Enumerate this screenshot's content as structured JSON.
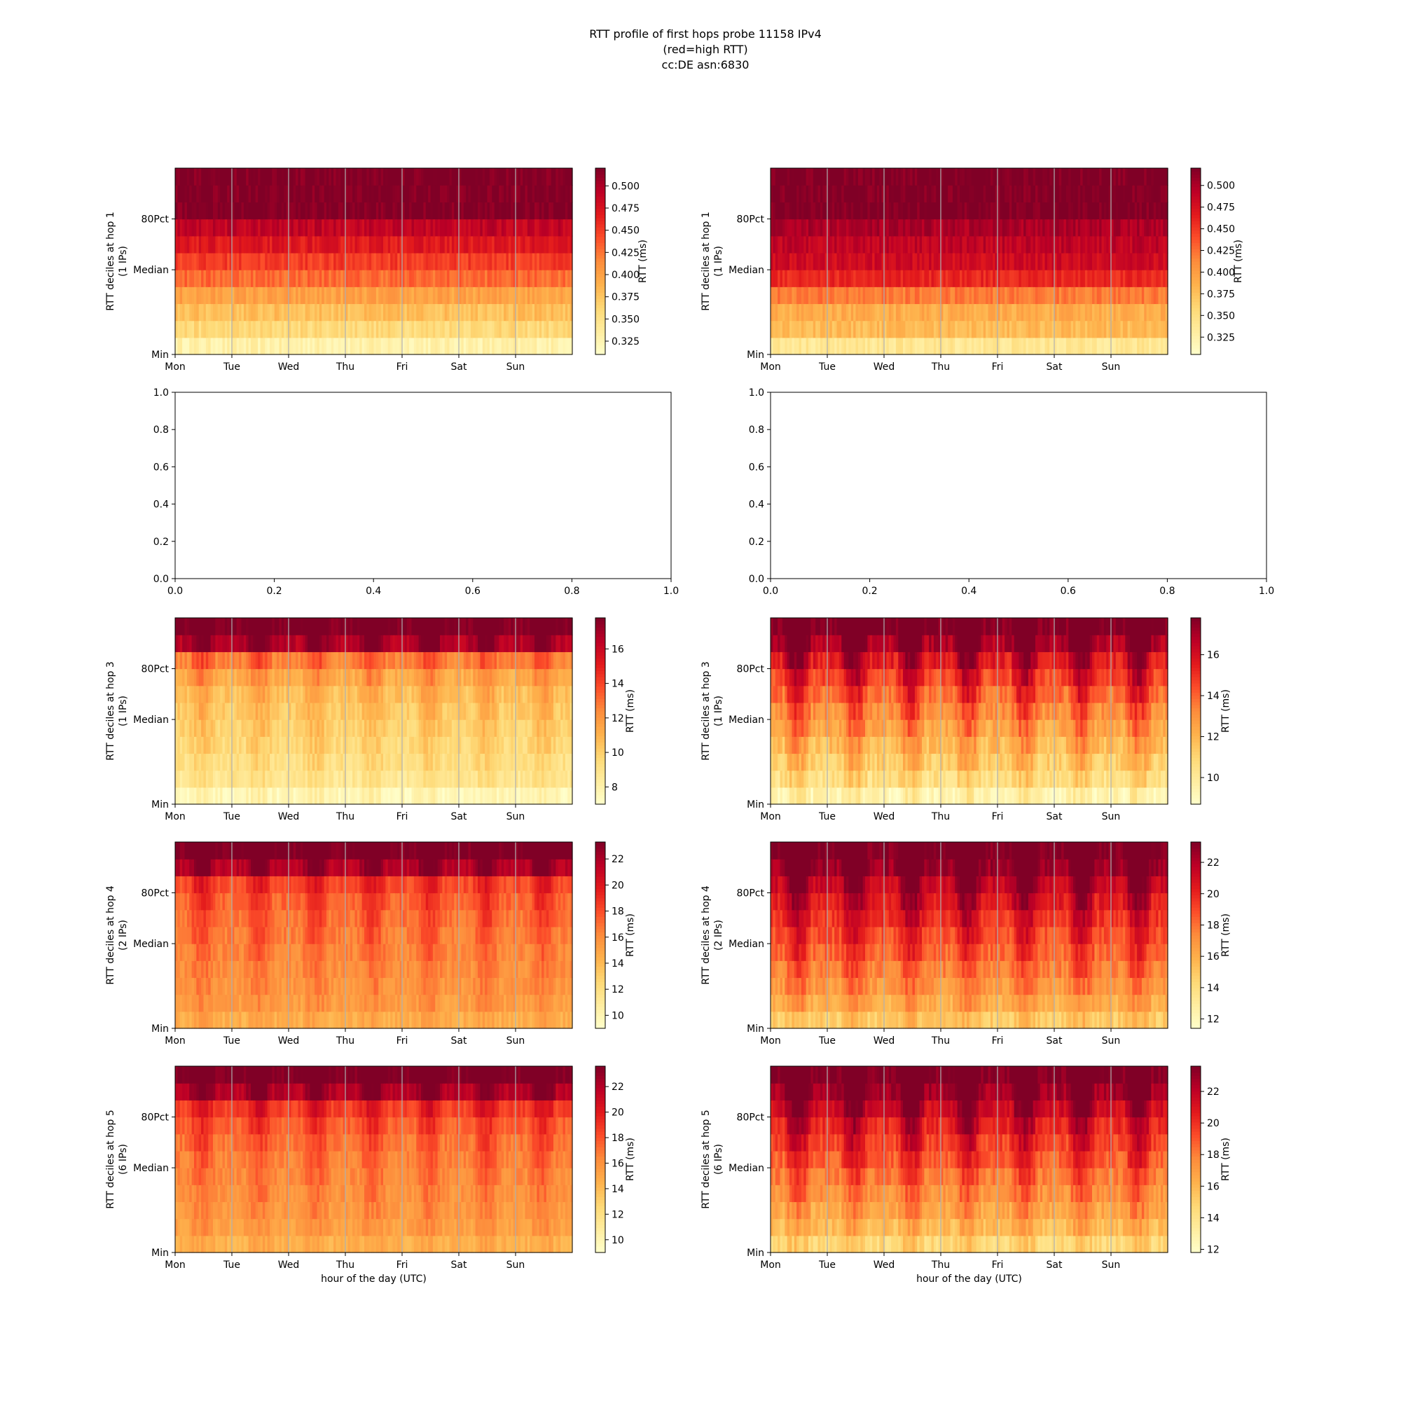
{
  "title_lines": [
    "RTT profile of first hops probe 11158 IPv4",
    "(red=high RTT)",
    "cc:DE asn:6830"
  ],
  "colors": {
    "colormap": "YlOrRd",
    "stops": [
      "#ffffcc",
      "#ffeda0",
      "#fed976",
      "#feb24c",
      "#fd8d3c",
      "#fc4e2a",
      "#e31a1c",
      "#bd0026",
      "#800026"
    ],
    "gridline": "#b0b0b0",
    "axis": "#000000"
  },
  "chart_data": [
    {
      "type": "heatmap",
      "position": "row1-left",
      "ylabel_lines": [
        "RTT deciles at hop 1",
        "(1 IPs)"
      ],
      "yticks": [
        "Min",
        "Median",
        "80Pct"
      ],
      "xticks": [
        "Mon",
        "Tue",
        "Wed",
        "Thu",
        "Fri",
        "Sat",
        "Sun"
      ],
      "xlabel": "",
      "colorbar_label": "RTT (ms)",
      "colorbar_range": [
        0.31,
        0.52
      ],
      "colorbar_ticks": [
        "0.325",
        "0.350",
        "0.375",
        "0.400",
        "0.425",
        "0.450",
        "0.475",
        "0.500"
      ],
      "decile_levels": [
        0.33,
        0.36,
        0.38,
        0.4,
        0.43,
        0.45,
        0.47,
        0.49,
        0.52,
        0.52,
        0.52
      ],
      "diurnal_amplitude": 0.0,
      "noise": 0.012
    },
    {
      "type": "heatmap",
      "position": "row1-right",
      "ylabel_lines": [
        "RTT deciles at hop 1",
        "(1 IPs)"
      ],
      "yticks": [
        "Min",
        "Median",
        "80Pct"
      ],
      "xticks": [
        "Mon",
        "Tue",
        "Wed",
        "Thu",
        "Fri",
        "Sat",
        "Sun"
      ],
      "xlabel": "",
      "colorbar_label": "RTT (ms)",
      "colorbar_range": [
        0.305,
        0.52
      ],
      "colorbar_ticks": [
        "0.325",
        "0.350",
        "0.375",
        "0.400",
        "0.425",
        "0.450",
        "0.475",
        "0.500"
      ],
      "decile_levels": [
        0.34,
        0.38,
        0.39,
        0.42,
        0.46,
        0.48,
        0.49,
        0.5,
        0.52,
        0.52,
        0.52
      ],
      "diurnal_amplitude": 0.0,
      "noise": 0.012
    },
    {
      "type": "empty",
      "position": "row2-left",
      "xlim": [
        0.0,
        1.0
      ],
      "ylim": [
        0.0,
        1.0
      ],
      "xticks": [
        "0.0",
        "0.2",
        "0.4",
        "0.6",
        "0.8",
        "1.0"
      ],
      "yticks": [
        "0.0",
        "0.2",
        "0.4",
        "0.6",
        "0.8",
        "1.0"
      ]
    },
    {
      "type": "empty",
      "position": "row2-right",
      "xlim": [
        0.0,
        1.0
      ],
      "ylim": [
        0.0,
        1.0
      ],
      "xticks": [
        "0.0",
        "0.2",
        "0.4",
        "0.6",
        "0.8",
        "1.0"
      ],
      "yticks": [
        "0.0",
        "0.2",
        "0.4",
        "0.6",
        "0.8",
        "1.0"
      ]
    },
    {
      "type": "heatmap",
      "position": "row3-left",
      "ylabel_lines": [
        "RTT deciles at hop 3",
        "(1 IPs)"
      ],
      "yticks": [
        "Min",
        "Median",
        "80Pct"
      ],
      "xticks": [
        "Mon",
        "Tue",
        "Wed",
        "Thu",
        "Fri",
        "Sat",
        "Sun"
      ],
      "xlabel": "",
      "colorbar_label": "RTT (ms)",
      "colorbar_range": [
        7.0,
        17.8
      ],
      "colorbar_ticks": [
        "8",
        "10",
        "12",
        "14",
        "16"
      ],
      "decile_levels": [
        7.6,
        8.8,
        9.2,
        9.5,
        9.8,
        10.1,
        10.5,
        11.2,
        12.5,
        16.5,
        17.8
      ],
      "diurnal_amplitude": 1.8,
      "noise": 0.6
    },
    {
      "type": "heatmap",
      "position": "row3-right",
      "ylabel_lines": [
        "RTT deciles at hop 3",
        "(1 IPs)"
      ],
      "yticks": [
        "Min",
        "Median",
        "80Pct"
      ],
      "xticks": [
        "Mon",
        "Tue",
        "Wed",
        "Thu",
        "Fri",
        "Sat",
        "Sun"
      ],
      "xlabel": "",
      "colorbar_label": "RTT (ms)",
      "colorbar_range": [
        8.7,
        17.8
      ],
      "colorbar_ticks": [
        "10",
        "12",
        "14",
        "16"
      ],
      "decile_levels": [
        9.3,
        10.5,
        11.2,
        11.8,
        12.4,
        13.0,
        13.7,
        14.5,
        15.5,
        16.8,
        17.8
      ],
      "diurnal_amplitude": 3.0,
      "noise": 0.7
    },
    {
      "type": "heatmap",
      "position": "row4-left",
      "ylabel_lines": [
        "RTT deciles at hop 4",
        "(2 IPs)"
      ],
      "yticks": [
        "Min",
        "Median",
        "80Pct"
      ],
      "xticks": [
        "Mon",
        "Tue",
        "Wed",
        "Thu",
        "Fri",
        "Sat",
        "Sun"
      ],
      "xlabel": "",
      "colorbar_label": "RTT (ms)",
      "colorbar_range": [
        9.0,
        23.3
      ],
      "colorbar_ticks": [
        "10",
        "12",
        "14",
        "16",
        "18",
        "20",
        "22"
      ],
      "decile_levels": [
        14.5,
        15.3,
        15.6,
        15.9,
        16.2,
        16.5,
        16.8,
        17.2,
        18.0,
        21.5,
        23.3
      ],
      "diurnal_amplitude": 2.5,
      "noise": 0.7
    },
    {
      "type": "heatmap",
      "position": "row4-right",
      "ylabel_lines": [
        "RTT deciles at hop 4",
        "(2 IPs)"
      ],
      "yticks": [
        "Min",
        "Median",
        "80Pct"
      ],
      "xticks": [
        "Mon",
        "Tue",
        "Wed",
        "Thu",
        "Fri",
        "Sat",
        "Sun"
      ],
      "xlabel": "",
      "colorbar_label": "RTT (ms)",
      "colorbar_range": [
        11.4,
        23.3
      ],
      "colorbar_ticks": [
        "12",
        "14",
        "16",
        "18",
        "20",
        "22"
      ],
      "decile_levels": [
        14.8,
        16.0,
        16.8,
        17.5,
        18.2,
        18.8,
        19.5,
        20.3,
        21.3,
        22.5,
        23.3
      ],
      "diurnal_amplitude": 3.5,
      "noise": 0.8
    },
    {
      "type": "heatmap",
      "position": "row5-left",
      "ylabel_lines": [
        "RTT deciles at hop 5",
        "(6 IPs)"
      ],
      "yticks": [
        "Min",
        "Median",
        "80Pct"
      ],
      "xticks": [
        "Mon",
        "Tue",
        "Wed",
        "Thu",
        "Fri",
        "Sat",
        "Sun"
      ],
      "xlabel": "hour of the day (UTC)",
      "colorbar_label": "RTT (ms)",
      "colorbar_range": [
        9.0,
        23.6
      ],
      "colorbar_ticks": [
        "10",
        "12",
        "14",
        "16",
        "18",
        "20",
        "22"
      ],
      "decile_levels": [
        14.5,
        15.3,
        15.6,
        15.9,
        16.2,
        16.5,
        16.9,
        17.5,
        18.6,
        21.8,
        23.6
      ],
      "diurnal_amplitude": 2.5,
      "noise": 0.7
    },
    {
      "type": "heatmap",
      "position": "row5-right",
      "ylabel_lines": [
        "RTT deciles at hop 5",
        "(6 IPs)"
      ],
      "yticks": [
        "Min",
        "Median",
        "80Pct"
      ],
      "xticks": [
        "Mon",
        "Tue",
        "Wed",
        "Thu",
        "Fri",
        "Sat",
        "Sun"
      ],
      "xlabel": "hour of the day (UTC)",
      "colorbar_label": "RTT (ms)",
      "colorbar_range": [
        11.8,
        23.6
      ],
      "colorbar_ticks": [
        "12",
        "14",
        "16",
        "18",
        "20",
        "22"
      ],
      "decile_levels": [
        14.6,
        15.8,
        16.6,
        17.3,
        18.0,
        18.7,
        19.4,
        20.2,
        21.3,
        22.6,
        23.6
      ],
      "diurnal_amplitude": 3.5,
      "noise": 0.8
    }
  ]
}
